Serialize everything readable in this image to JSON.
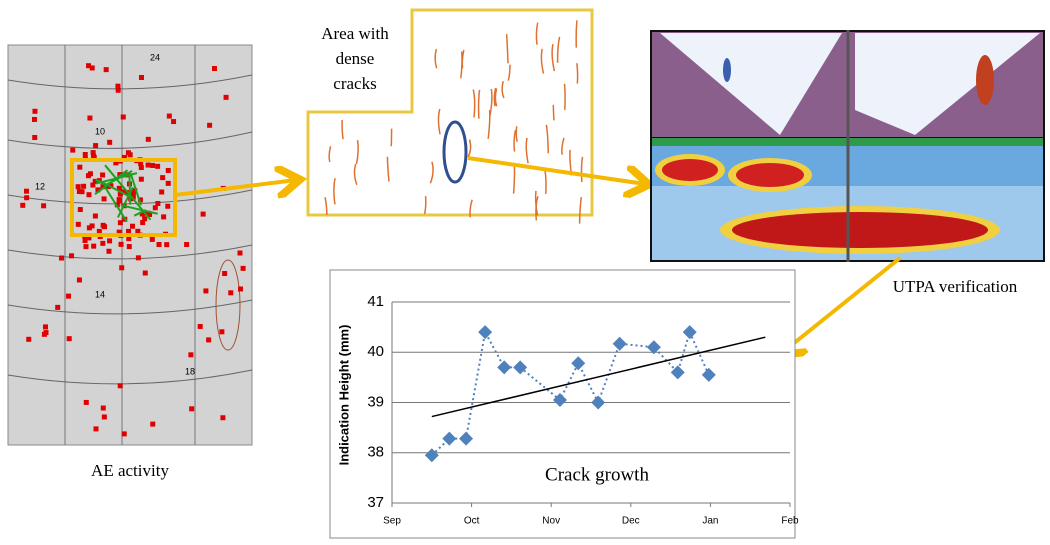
{
  "labels": {
    "ae_activity": "AE activity",
    "dense_cracks": [
      "Area with",
      "dense",
      "cracks"
    ],
    "utpa": "UTPA verification"
  },
  "chart_data": {
    "type": "line",
    "title": "Crack growth",
    "y_label": "Indication Height (mm)",
    "xlim": [
      0,
      5
    ],
    "xticks": [
      {
        "value": 0,
        "label": "Sep"
      },
      {
        "value": 1,
        "label": "Oct"
      },
      {
        "value": 2,
        "label": "Nov"
      },
      {
        "value": 3,
        "label": "Dec"
      },
      {
        "value": 4,
        "label": "Jan"
      },
      {
        "value": 5,
        "label": "Feb"
      }
    ],
    "ylim": [
      37,
      41
    ],
    "yticks": [
      37,
      38,
      39,
      40,
      41
    ],
    "grid": true,
    "series": [
      {
        "color": "#4f81bd",
        "x": [
          0.5,
          0.72,
          0.93,
          1.17,
          1.41,
          1.61,
          2.11,
          2.34,
          2.59,
          2.86,
          3.29,
          3.59,
          3.74,
          3.98
        ],
        "values": [
          37.95,
          38.28,
          38.28,
          40.4,
          39.7,
          39.7,
          39.05,
          39.78,
          39.0,
          40.17,
          40.1,
          39.6,
          40.4,
          39.55
        ]
      },
      {
        "color": "#000000",
        "x": [
          0.5,
          4.69
        ],
        "values": [
          38.72,
          40.3
        ]
      }
    ]
  }
}
